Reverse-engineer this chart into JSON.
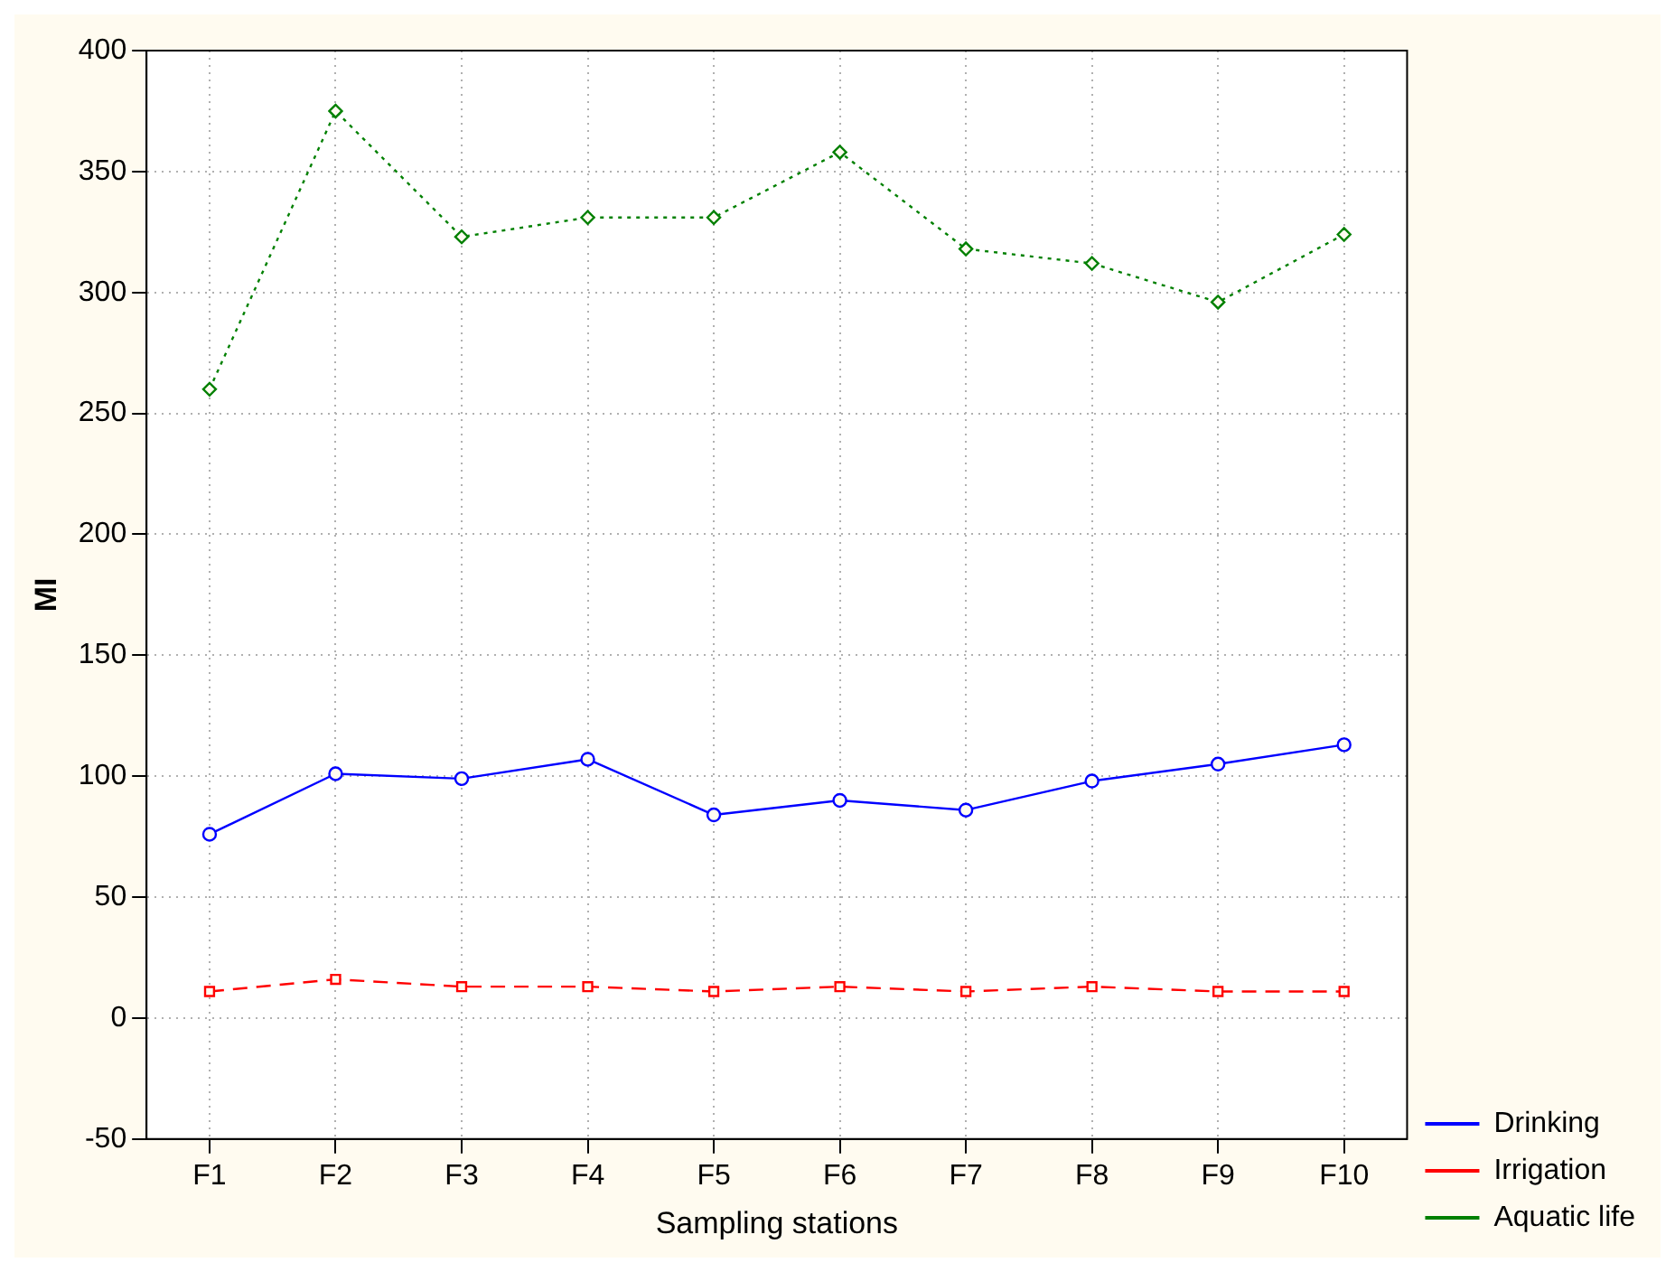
{
  "chart_data": {
    "type": "line",
    "xlabel": "Sampling stations",
    "ylabel": "MI",
    "categories": [
      "F1",
      "F2",
      "F3",
      "F4",
      "F5",
      "F6",
      "F7",
      "F8",
      "F9",
      "F10"
    ],
    "series": [
      {
        "name": "Drinking",
        "color": "#0000ff",
        "marker": "circle",
        "line_style": "solid",
        "values": [
          76,
          101,
          99,
          107,
          84,
          90,
          86,
          98,
          105,
          113
        ]
      },
      {
        "name": "Irrigation",
        "color": "#ff0000",
        "marker": "square",
        "line_style": "dashed",
        "values": [
          11,
          16,
          13,
          13,
          11,
          13,
          11,
          13,
          11,
          11
        ]
      },
      {
        "name": "Aquatic life",
        "color": "#008000",
        "marker": "diamond",
        "line_style": "dotted",
        "values": [
          260,
          375,
          323,
          331,
          331,
          358,
          318,
          312,
          296,
          324
        ]
      }
    ],
    "ylim": [
      -50,
      400
    ],
    "yticks": [
      -50,
      0,
      50,
      100,
      150,
      200,
      250,
      300,
      350,
      400
    ],
    "grid": true,
    "legend": "bottom right"
  }
}
